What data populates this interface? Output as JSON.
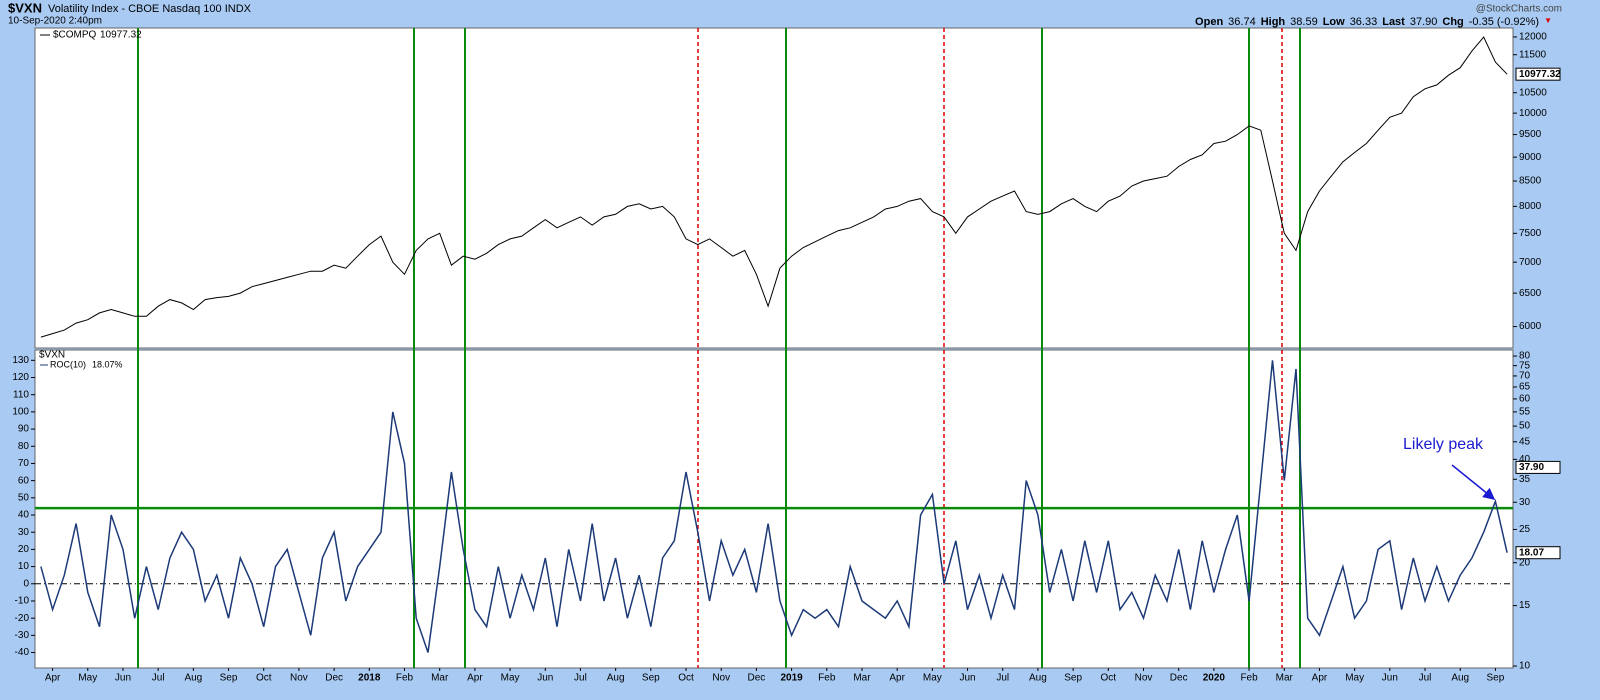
{
  "chart_data": [
    {
      "type": "line",
      "log": true,
      "title": "$VXN",
      "subtitle": "Volatility Index - CBOE Nasdaq 100 INDX",
      "date": "10-Sep-2020 2:40pm",
      "source": "@StockCharts.com",
      "quote": [
        {
          "label": "Open",
          "text": "36.74"
        },
        {
          "label": "High",
          "text": "38.59"
        },
        {
          "label": "Low",
          "text": "36.33"
        },
        {
          "label": "Last",
          "text": "37.90"
        },
        {
          "label": "Chg",
          "text": "-0.35 (-0.92%)"
        }
      ],
      "series": [
        {
          "name": "$COMPQ",
          "color": "#000000",
          "values": [
            5850,
            5900,
            5950,
            6050,
            6100,
            6200,
            6250,
            6200,
            6150,
            6150,
            6300,
            6400,
            6350,
            6250,
            6400,
            6430,
            6450,
            6500,
            6600,
            6650,
            6700,
            6750,
            6800,
            6850,
            6850,
            6950,
            6900,
            7100,
            7300,
            7450,
            7000,
            6800,
            7200,
            7400,
            7500,
            6950,
            7100,
            7050,
            7150,
            7300,
            7400,
            7450,
            7600,
            7750,
            7600,
            7700,
            7800,
            7650,
            7800,
            7850,
            8000,
            8050,
            7950,
            8000,
            7800,
            7400,
            7300,
            7400,
            7250,
            7100,
            7200,
            6800,
            6300,
            6900,
            7100,
            7250,
            7350,
            7450,
            7550,
            7600,
            7700,
            7800,
            7950,
            8000,
            8100,
            8150,
            7900,
            7800,
            7500,
            7800,
            7950,
            8100,
            8200,
            8300,
            7900,
            7850,
            7900,
            8050,
            8150,
            8000,
            7900,
            8100,
            8200,
            8400,
            8500,
            8550,
            8600,
            8800,
            8950,
            9050,
            9300,
            9350,
            9500,
            9700,
            9600,
            8500,
            7500,
            7200,
            7900,
            8300,
            8600,
            8900,
            9100,
            9300,
            9600,
            9900,
            10000,
            10400,
            10600,
            10700,
            10950,
            11150,
            11600,
            12000,
            11300,
            10977.32
          ]
        }
      ],
      "last_value": 10977.32,
      "ylim": [
        5700,
        12260
      ],
      "yticks": [
        6000,
        6500,
        7000,
        7500,
        8000,
        8500,
        9000,
        9500,
        10000,
        10500,
        11500,
        12000
      ]
    },
    {
      "type": "line",
      "y2_label": "$VXN",
      "series": [
        {
          "name": "ROC(10)",
          "color": "#1c3a78",
          "values": [
            10,
            -15,
            5,
            35,
            -5,
            -25,
            40,
            20,
            -20,
            10,
            -15,
            15,
            30,
            20,
            -10,
            5,
            -20,
            15,
            0,
            -25,
            10,
            20,
            -5,
            -30,
            15,
            30,
            -10,
            10,
            20,
            30,
            100,
            70,
            -20,
            -40,
            10,
            65,
            20,
            -15,
            -25,
            10,
            -20,
            5,
            -15,
            15,
            -25,
            20,
            -10,
            35,
            -10,
            15,
            -20,
            5,
            -25,
            15,
            25,
            65,
            30,
            -10,
            25,
            5,
            20,
            -5,
            35,
            -10,
            -30,
            -15,
            -20,
            -15,
            -25,
            10,
            -10,
            -15,
            -20,
            -10,
            -25,
            40,
            52,
            0,
            25,
            -15,
            5,
            -20,
            5,
            -15,
            60,
            40,
            -5,
            20,
            -10,
            25,
            -5,
            25,
            -15,
            -5,
            -20,
            5,
            -10,
            20,
            -15,
            25,
            -5,
            20,
            40,
            -10,
            60,
            130,
            60,
            125,
            -20,
            -30,
            -10,
            10,
            -20,
            -10,
            20,
            25,
            -15,
            15,
            -10,
            10,
            -10,
            5,
            15,
            30,
            48,
            18.07
          ]
        }
      ],
      "legend_value_label": "18.07%",
      "last_value": 18.07,
      "y2_last_value": {
        "value": 37.9,
        "label": "37.90"
      },
      "hline": 44,
      "annotation": "Likely peak",
      "categories": [
        null,
        "Apr",
        null,
        null,
        "May",
        null,
        null,
        "Jun",
        null,
        null,
        "Jul",
        null,
        null,
        "Aug",
        null,
        null,
        "Sep",
        null,
        null,
        "Oct",
        null,
        null,
        "Nov",
        null,
        null,
        "Dec",
        null,
        null,
        "2018",
        null,
        null,
        "Feb",
        null,
        null,
        "Mar",
        null,
        null,
        "Apr",
        null,
        null,
        "May",
        null,
        null,
        "Jun",
        null,
        null,
        "Jul",
        null,
        null,
        "Aug",
        null,
        null,
        "Sep",
        null,
        null,
        "Oct",
        null,
        null,
        "Nov",
        null,
        null,
        "Dec",
        null,
        null,
        "2019",
        null,
        null,
        "Feb",
        null,
        null,
        "Mar",
        null,
        null,
        "Apr",
        null,
        null,
        "May",
        null,
        null,
        "Jun",
        null,
        null,
        "Jul",
        null,
        null,
        "Aug",
        null,
        null,
        "Sep",
        null,
        null,
        "Oct",
        null,
        null,
        "Nov",
        null,
        null,
        "Dec",
        null,
        null,
        "2020",
        null,
        null,
        "Feb",
        null,
        null,
        "Mar",
        null,
        null,
        "Apr",
        null,
        null,
        "May",
        null,
        null,
        "Jun",
        null,
        null,
        "Jul",
        null,
        null,
        "Aug",
        null,
        null,
        "Sep",
        null
      ],
      "ylim": [
        -49,
        136
      ],
      "yticks": [
        -40,
        -30,
        -20,
        -10,
        0,
        10,
        20,
        30,
        40,
        50,
        60,
        70,
        80,
        90,
        100,
        110,
        120,
        130
      ],
      "y2log": true,
      "y2lim": [
        9.87,
        83.3
      ],
      "y2ticks": [
        10,
        15,
        20,
        25,
        30,
        35,
        40,
        45,
        50,
        55,
        60,
        65,
        70,
        75,
        80
      ]
    }
  ]
}
